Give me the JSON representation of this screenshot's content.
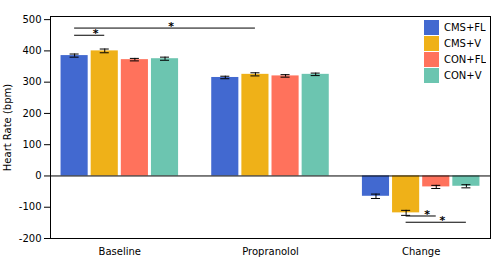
{
  "chart_data": {
    "type": "bar",
    "categories": [
      "Baseline",
      "Propranolol",
      "Change"
    ],
    "series": [
      {
        "name": "CMS+FL",
        "values": [
          385,
          315,
          -65
        ],
        "errors": [
          5,
          4,
          7
        ]
      },
      {
        "name": "CMS+V",
        "values": [
          400,
          325,
          -118
        ],
        "errors": [
          6,
          5,
          8
        ]
      },
      {
        "name": "CON+FL",
        "values": [
          372,
          320,
          -35
        ],
        "errors": [
          4,
          4,
          5
        ]
      },
      {
        "name": "CON+V",
        "values": [
          375,
          325,
          -33
        ],
        "errors": [
          5,
          4,
          5
        ]
      }
    ],
    "ylabel": "Heart Rate (bpm)",
    "ylim": [
      -200,
      510
    ],
    "yticks": [
      -200,
      -100,
      0,
      100,
      200,
      300,
      400,
      500
    ],
    "grid": false,
    "legend": "upper right",
    "annotations": [
      {
        "text": "*",
        "from": {
          "category": "Baseline",
          "series": "CMS+FL"
        },
        "to": {
          "category": "Baseline",
          "series": "CMS+V"
        },
        "y": 450
      },
      {
        "text": "*",
        "from": {
          "category": "Baseline",
          "series": "CMS+FL"
        },
        "to": {
          "category": "Propranolol",
          "series": "CMS+V"
        },
        "y": 473
      },
      {
        "text": "*",
        "from": {
          "category": "Change",
          "series": "CMS+V"
        },
        "to": {
          "category": "Change",
          "series": "CON+FL"
        },
        "y": -128
      },
      {
        "text": "*",
        "from": {
          "category": "Change",
          "series": "CMS+V"
        },
        "to": {
          "category": "Change",
          "series": "CON+V"
        },
        "y": -148
      }
    ]
  }
}
